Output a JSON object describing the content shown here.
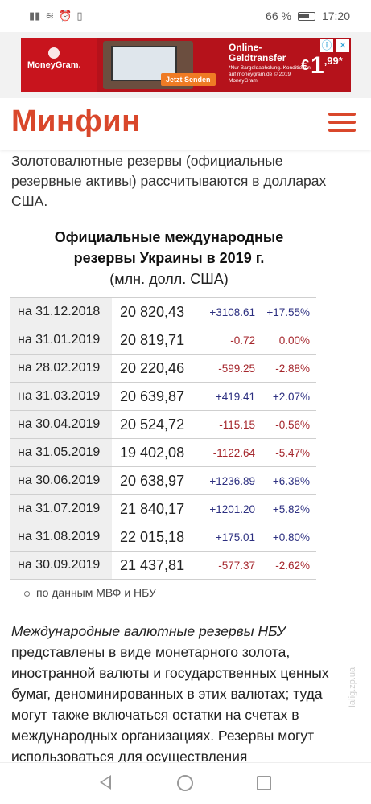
{
  "status": {
    "left_icons": [
      "signal-icon",
      "wifi-icon",
      "alarm-icon",
      "vibrate-icon"
    ],
    "battery_pct": "66 %",
    "time": "17:20"
  },
  "ad": {
    "brand": "MoneyGram.",
    "cta": "Jetzt Senden",
    "title": "Online-Geldtransfer",
    "small": "*Nur Bargeldabholung. Konditionen auf moneygram.de © 2019 MoneyGram",
    "price_currency": "€",
    "price_int": "1",
    "price_dec": ",99",
    "price_star": "*"
  },
  "header": {
    "logo": "Минфин"
  },
  "intro": "Золотовалютные резервы (официальные резервные активы) рассчитываются в долларах США.",
  "table_title": {
    "line1": "Официальные международные",
    "line2": "резервы Украины в 2019 г.",
    "line3": "(млн. долл. США)"
  },
  "rows": [
    {
      "date": "на 31.12.2018",
      "value": "20 820,43",
      "delta": "+3108.61",
      "pct": "+17.55%"
    },
    {
      "date": "на 31.01.2019",
      "value": "20 819,71",
      "delta": "-0.72",
      "pct": "0.00%"
    },
    {
      "date": "на 28.02.2019",
      "value": "20 220,46",
      "delta": "-599.25",
      "pct": "-2.88%"
    },
    {
      "date": "на 31.03.2019",
      "value": "20 639,87",
      "delta": "+419.41",
      "pct": "+2.07%"
    },
    {
      "date": "на 30.04.2019",
      "value": "20 524,72",
      "delta": "-115.15",
      "pct": "-0.56%"
    },
    {
      "date": "на 31.05.2019",
      "value": "19 402,08",
      "delta": "-1122.64",
      "pct": "-5.47%"
    },
    {
      "date": "на 30.06.2019",
      "value": "20 638,97",
      "delta": "+1236.89",
      "pct": "+6.38%"
    },
    {
      "date": "на 31.07.2019",
      "value": "21 840,17",
      "delta": "+1201.20",
      "pct": "+5.82%"
    },
    {
      "date": "на 31.08.2019",
      "value": "22 015,18",
      "delta": "+175.01",
      "pct": "+0.80%"
    },
    {
      "date": "на 30.09.2019",
      "value": "21 437,81",
      "delta": "-577.37",
      "pct": "-2.62%"
    }
  ],
  "source": "по данным МВФ и НБУ",
  "paragraph": {
    "italic": "Международные валютные резервы НБУ",
    "rest": "представлены в виде монетарного золота, иностранной валюты и государственных ценных бумаг, деноминированных в этих валютах; туда могут также включаться остатки на счетах в международных организациях. Резервы могут использоваться для осуществления"
  },
  "watermark": "Іalig.zp.ua",
  "colors": {
    "brand": "#d9472b",
    "positive": "#2c2f80",
    "negative": "#a5262c",
    "ad_red": "#b5121b"
  }
}
